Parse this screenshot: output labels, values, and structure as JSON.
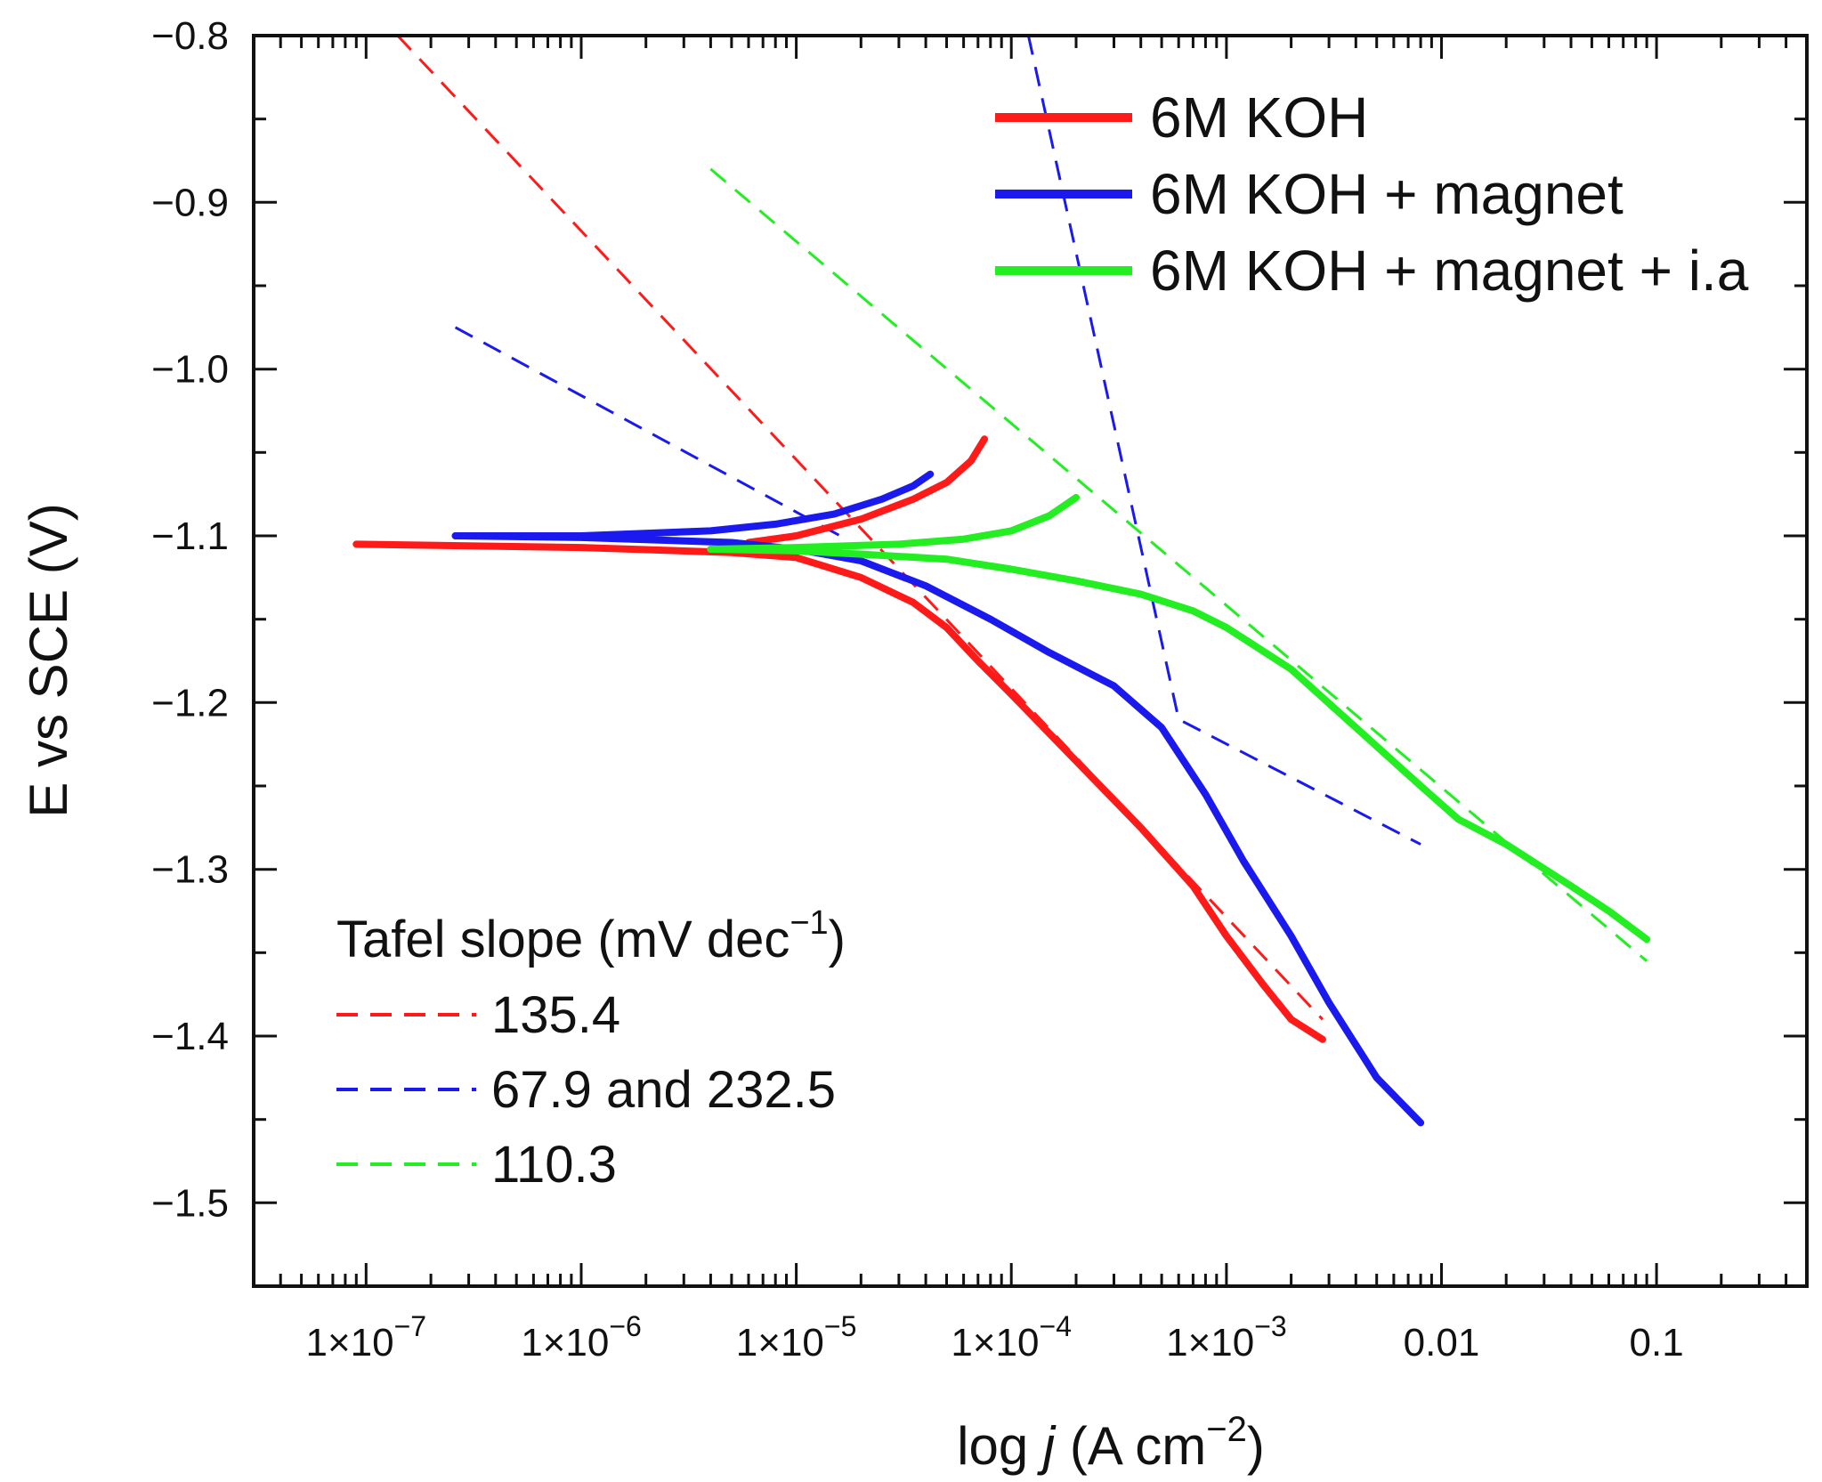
{
  "chart_data": {
    "type": "line",
    "xlabel_prefix": "log ",
    "xlabel_var": "j",
    "xlabel_unit": " (A cm",
    "xlabel_exp": "−2",
    "xlabel_close": ")",
    "ylabel": "E vs SCE (V)",
    "x_scale": "log",
    "xlim": [
      3e-08,
      0.5
    ],
    "ylim": [
      -1.55,
      -0.8
    ],
    "grid": false,
    "legend_position": "top-right",
    "x_ticks": [
      {
        "value": 1e-07,
        "mantissa": "1×10",
        "exp": "−7"
      },
      {
        "value": 1e-06,
        "mantissa": "1×10",
        "exp": "−6"
      },
      {
        "value": 1e-05,
        "mantissa": "1×10",
        "exp": "−5"
      },
      {
        "value": 0.0001,
        "mantissa": "1×10",
        "exp": "−4"
      },
      {
        "value": 0.001,
        "mantissa": "1×10",
        "exp": "−3"
      },
      {
        "value": 0.01,
        "mantissa": "0.01",
        "exp": ""
      },
      {
        "value": 0.1,
        "mantissa": "0.1",
        "exp": ""
      }
    ],
    "y_ticks": [
      {
        "value": -0.8,
        "label": "−0.8"
      },
      {
        "value": -0.9,
        "label": "−0.9"
      },
      {
        "value": -1.0,
        "label": "−1.0"
      },
      {
        "value": -1.1,
        "label": "−1.1"
      },
      {
        "value": -1.2,
        "label": "−1.2"
      },
      {
        "value": -1.3,
        "label": "−1.3"
      },
      {
        "value": -1.4,
        "label": "−1.4"
      },
      {
        "value": -1.5,
        "label": "−1.5"
      }
    ],
    "series": [
      {
        "name": "6M KOH",
        "color": "#ff1a1a",
        "cathodic": [
          [
            9e-08,
            -1.105
          ],
          [
            1e-06,
            -1.107
          ],
          [
            5e-06,
            -1.11
          ],
          [
            1e-05,
            -1.113
          ],
          [
            2e-05,
            -1.125
          ],
          [
            3.5e-05,
            -1.14
          ],
          [
            5e-05,
            -1.155
          ],
          [
            7e-05,
            -1.175
          ],
          [
            0.0001,
            -1.195
          ],
          [
            0.0002,
            -1.235
          ],
          [
            0.0004,
            -1.275
          ],
          [
            0.0007,
            -1.31
          ],
          [
            0.001,
            -1.34
          ],
          [
            0.0015,
            -1.37
          ],
          [
            0.002,
            -1.39
          ],
          [
            0.0028,
            -1.402
          ]
        ],
        "anodic": [
          [
            6e-06,
            -1.104
          ],
          [
            1e-05,
            -1.1
          ],
          [
            2e-05,
            -1.09
          ],
          [
            3.5e-05,
            -1.078
          ],
          [
            5e-05,
            -1.068
          ],
          [
            6.5e-05,
            -1.055
          ],
          [
            7.5e-05,
            -1.042
          ]
        ]
      },
      {
        "name": "6M KOH + magnet",
        "color": "#1a1aee",
        "cathodic": [
          [
            2.6e-07,
            -1.1
          ],
          [
            1e-06,
            -1.101
          ],
          [
            5e-06,
            -1.104
          ],
          [
            1e-05,
            -1.108
          ],
          [
            2e-05,
            -1.115
          ],
          [
            4e-05,
            -1.13
          ],
          [
            8e-05,
            -1.15
          ],
          [
            0.00015,
            -1.17
          ],
          [
            0.0003,
            -1.19
          ],
          [
            0.0005,
            -1.215
          ],
          [
            0.0008,
            -1.255
          ],
          [
            0.0012,
            -1.295
          ],
          [
            0.002,
            -1.34
          ],
          [
            0.003,
            -1.38
          ],
          [
            0.005,
            -1.425
          ],
          [
            0.008,
            -1.452
          ]
        ],
        "anodic": [
          [
            2.6e-07,
            -1.1
          ],
          [
            1e-06,
            -1.1
          ],
          [
            4e-06,
            -1.097
          ],
          [
            8e-06,
            -1.093
          ],
          [
            1.5e-05,
            -1.087
          ],
          [
            2.5e-05,
            -1.078
          ],
          [
            3.5e-05,
            -1.07
          ],
          [
            4.2e-05,
            -1.063
          ]
        ]
      },
      {
        "name": "6M KOH + magnet + i.a",
        "color": "#22ee22",
        "cathodic": [
          [
            4e-06,
            -1.108
          ],
          [
            1e-05,
            -1.109
          ],
          [
            2e-05,
            -1.111
          ],
          [
            5e-05,
            -1.114
          ],
          [
            0.0001,
            -1.12
          ],
          [
            0.0002,
            -1.127
          ],
          [
            0.0004,
            -1.135
          ],
          [
            0.0007,
            -1.145
          ],
          [
            0.001,
            -1.155
          ],
          [
            0.002,
            -1.18
          ],
          [
            0.004,
            -1.215
          ],
          [
            0.008,
            -1.25
          ],
          [
            0.012,
            -1.27
          ],
          [
            0.02,
            -1.285
          ],
          [
            0.04,
            -1.31
          ],
          [
            0.06,
            -1.325
          ],
          [
            0.09,
            -1.342
          ]
        ],
        "anodic": [
          [
            4e-06,
            -1.108
          ],
          [
            1e-05,
            -1.107
          ],
          [
            3e-05,
            -1.105
          ],
          [
            6e-05,
            -1.102
          ],
          [
            0.0001,
            -1.097
          ],
          [
            0.00015,
            -1.088
          ],
          [
            0.0002,
            -1.077
          ]
        ]
      }
    ],
    "tafel_title": "Tafel slope (mV dec",
    "tafel_exp": "−1",
    "tafel_close": ")",
    "tafel_fits": [
      {
        "label": "135.4",
        "color": "#ff1a1a",
        "lines": [
          [
            [
              1.4e-07,
              -0.8
            ],
            [
              0.0028,
              -1.39
            ]
          ]
        ]
      },
      {
        "label": "67.9 and 232.5",
        "color": "#1a1aee",
        "lines": [
          [
            [
              2.6e-07,
              -0.975
            ],
            [
              1.6e-05,
              -1.1
            ]
          ],
          [
            [
              0.00012,
              -0.8
            ],
            [
              0.0006,
              -1.21
            ],
            [
              0.008,
              -1.285
            ]
          ]
        ]
      },
      {
        "label": "110.3",
        "color": "#22ee22",
        "lines": [
          [
            [
              4e-06,
              -0.88
            ],
            [
              0.09,
              -1.355
            ]
          ]
        ]
      }
    ]
  }
}
